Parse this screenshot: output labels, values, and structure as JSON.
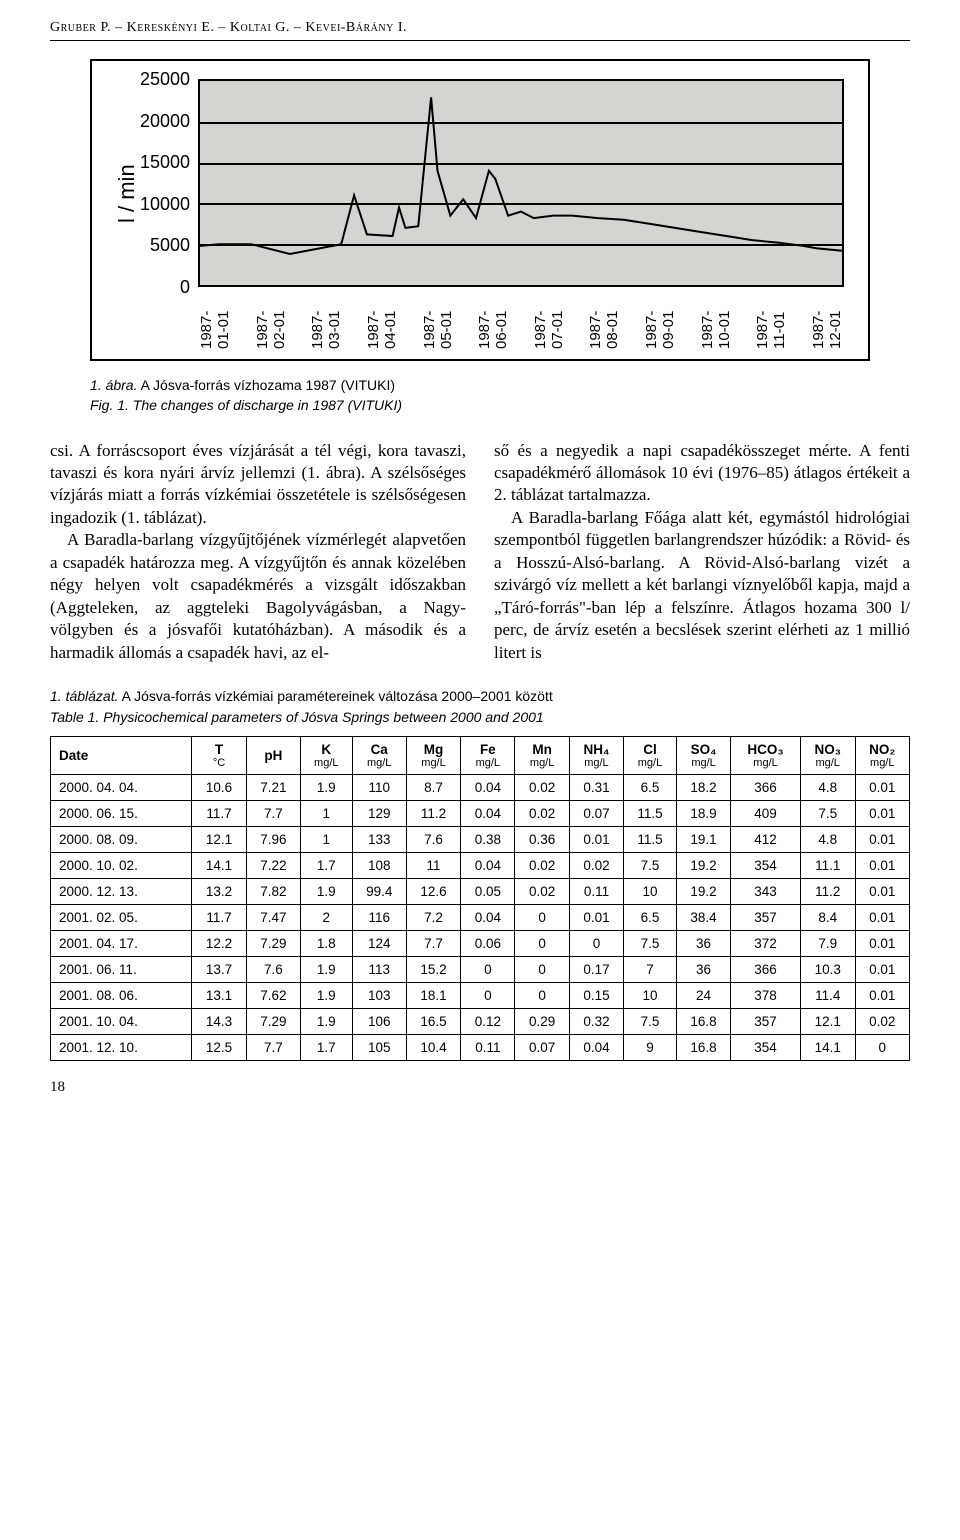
{
  "header": {
    "authors": "Gruber P. – Kereskényi E. – Koltai G. – Kevei-Bárány I."
  },
  "chart": {
    "type": "line",
    "ylabel": "l / min",
    "ylim": [
      0,
      25000
    ],
    "ytick_step": 5000,
    "yticks": [
      "25000",
      "20000",
      "15000",
      "10000",
      "5000",
      "0"
    ],
    "xticks": [
      "1987-01-01",
      "1987-02-01",
      "1987-03-01",
      "1987-04-01",
      "1987-05-01",
      "1987-06-01",
      "1987-07-01",
      "1987-08-01",
      "1987-09-01",
      "1987-10-01",
      "1987-11-01",
      "1987-12-01"
    ],
    "background_color": "#d4d4d0",
    "grid_color": "#000000",
    "line_color": "#000000",
    "line_width": 2,
    "series_points": [
      [
        0,
        4800
      ],
      [
        3,
        5000
      ],
      [
        8,
        5000
      ],
      [
        14,
        3800
      ],
      [
        22,
        5000
      ],
      [
        24,
        11000
      ],
      [
        26,
        6200
      ],
      [
        30,
        6000
      ],
      [
        31,
        9500
      ],
      [
        32,
        7000
      ],
      [
        34,
        7200
      ],
      [
        36,
        23000
      ],
      [
        37,
        14000
      ],
      [
        39,
        8500
      ],
      [
        41,
        10500
      ],
      [
        43,
        8200
      ],
      [
        45,
        14000
      ],
      [
        46,
        13000
      ],
      [
        48,
        8500
      ],
      [
        50,
        9000
      ],
      [
        52,
        8200
      ],
      [
        55,
        8500
      ],
      [
        58,
        8500
      ],
      [
        62,
        8200
      ],
      [
        66,
        8000
      ],
      [
        70,
        7500
      ],
      [
        74,
        7000
      ],
      [
        78,
        6500
      ],
      [
        82,
        6000
      ],
      [
        86,
        5500
      ],
      [
        90,
        5200
      ],
      [
        94,
        4800
      ],
      [
        96,
        4500
      ],
      [
        100,
        4200
      ]
    ]
  },
  "caption": {
    "line1_it": "1. ábra.",
    "line1_rest": " A Jósva-forrás vízhozama 1987 (VITUKI)",
    "line2": "Fig. 1. The changes of discharge in 1987 (VITUKI)"
  },
  "body": {
    "col1": "csi. A forráscsoport éves vízjárását a tél végi, kora tavaszi, tavaszi és kora nyári árvíz jellemzi (1. ábra). A szélsőséges víz­járás miatt a forrás vízkémiai összetétele is szélsőségesen ingadozik (1. táblázat).\n A Baradla-barlang vízgyűjtőjének víz­mérlegét alapvetően a csapadék határozza meg. A vízgyűjtőn és annak közelében négy helyen volt csapadékmérés a vizs­gált időszakban (Aggteleken, az aggtele­ki Bagolyvágásban, a Nagy-völgyben és a jósvafői kutatóházban). A második és a harmadik állomás a csapadék havi, az el-",
    "col2": "ső és a negyedik a napi csapadékösszeget mérte. A fenti csapadékmérő állomások 10 évi (1976–85) átlagos értékeit a 2. táblázat tartalmazza.\n A Baradla-barlang Főága alatt két, egymástól hidrológiai szempontból füg­getlen barlangrendszer húzódik: a Rö­vid- és a Hosszú-Alsó-barlang. A Rövid-Alsó-barlang vizét a szivárgó víz mellett a két barlangi víznyelőből kapja, majd a „Táró-forrás\"-ban lép a felszínre. Átlagos hozama 300 l/ perc, de árvíz esetén a becs­lések szerint elérheti az 1 millió litert is"
  },
  "table_caption": {
    "line1_it": "1. táblázat.",
    "line1_rest": " A Jósva-forrás vízkémiai paramétereinek változása 2000–2001 között",
    "line2": "Table 1. Physicochemical parameters of Jósva Springs between 2000 and 2001"
  },
  "table": {
    "columns": [
      {
        "label": "Date",
        "sub": ""
      },
      {
        "label": "T",
        "sub": "°C"
      },
      {
        "label": "pH",
        "sub": ""
      },
      {
        "label": "K",
        "sub": "mg/L"
      },
      {
        "label": "Ca",
        "sub": "mg/L"
      },
      {
        "label": "Mg",
        "sub": "mg/L"
      },
      {
        "label": "Fe",
        "sub": "mg/L"
      },
      {
        "label": "Mn",
        "sub": "mg/L"
      },
      {
        "label": "NH₄",
        "sub": "mg/L"
      },
      {
        "label": "Cl",
        "sub": "mg/L"
      },
      {
        "label": "SO₄",
        "sub": "mg/L"
      },
      {
        "label": "HCO₃",
        "sub": "mg/L"
      },
      {
        "label": "NO₃",
        "sub": "mg/L"
      },
      {
        "label": "NO₂",
        "sub": "mg/L"
      }
    ],
    "rows": [
      [
        "2000. 04. 04.",
        "10.6",
        "7.21",
        "1.9",
        "110",
        "8.7",
        "0.04",
        "0.02",
        "0.31",
        "6.5",
        "18.2",
        "366",
        "4.8",
        "0.01"
      ],
      [
        "2000. 06. 15.",
        "11.7",
        "7.7",
        "1",
        "129",
        "11.2",
        "0.04",
        "0.02",
        "0.07",
        "11.5",
        "18.9",
        "409",
        "7.5",
        "0.01"
      ],
      [
        "2000. 08. 09.",
        "12.1",
        "7.96",
        "1",
        "133",
        "7.6",
        "0.38",
        "0.36",
        "0.01",
        "11.5",
        "19.1",
        "412",
        "4.8",
        "0.01"
      ],
      [
        "2000. 10. 02.",
        "14.1",
        "7.22",
        "1.7",
        "108",
        "11",
        "0.04",
        "0.02",
        "0.02",
        "7.5",
        "19.2",
        "354",
        "11.1",
        "0.01"
      ],
      [
        "2000. 12. 13.",
        "13.2",
        "7.82",
        "1.9",
        "99.4",
        "12.6",
        "0.05",
        "0.02",
        "0.11",
        "10",
        "19.2",
        "343",
        "11.2",
        "0.01"
      ],
      [
        "2001. 02. 05.",
        "11.7",
        "7.47",
        "2",
        "116",
        "7.2",
        "0.04",
        "0",
        "0.01",
        "6.5",
        "38.4",
        "357",
        "8.4",
        "0.01"
      ],
      [
        "2001. 04. 17.",
        "12.2",
        "7.29",
        "1.8",
        "124",
        "7.7",
        "0.06",
        "0",
        "0",
        "7.5",
        "36",
        "372",
        "7.9",
        "0.01"
      ],
      [
        "2001. 06. 11.",
        "13.7",
        "7.6",
        "1.9",
        "113",
        "15.2",
        "0",
        "0",
        "0.17",
        "7",
        "36",
        "366",
        "10.3",
        "0.01"
      ],
      [
        "2001. 08. 06.",
        "13.1",
        "7.62",
        "1.9",
        "103",
        "18.1",
        "0",
        "0",
        "0.15",
        "10",
        "24",
        "378",
        "11.4",
        "0.01"
      ],
      [
        "2001. 10. 04.",
        "14.3",
        "7.29",
        "1.9",
        "106",
        "16.5",
        "0.12",
        "0.29",
        "0.32",
        "7.5",
        "16.8",
        "357",
        "12.1",
        "0.02"
      ],
      [
        "2001. 12. 10.",
        "12.5",
        "7.7",
        "1.7",
        "105",
        "10.4",
        "0.11",
        "0.07",
        "0.04",
        "9",
        "16.8",
        "354",
        "14.1",
        "0"
      ]
    ]
  },
  "page": "18"
}
